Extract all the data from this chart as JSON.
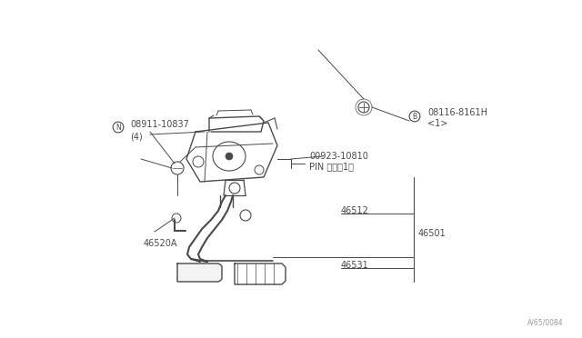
{
  "bg_color": "#ffffff",
  "line_color": "#4a4a4a",
  "text_color": "#4a4a4a",
  "watermark": "A/65/0084",
  "label_N_text": "N",
  "label_N_part": "08911-10837",
  "label_N_qty": "(4)",
  "label_B_text": "B",
  "label_B_part": "08116-8161H",
  "label_B_qty": "<1>",
  "label_pin_part": "00923-10810",
  "label_pin_name": "PIN ピン（1）",
  "label_46512": "46512",
  "label_46501": "46501",
  "label_46520A": "46520A",
  "label_46531": "46531"
}
